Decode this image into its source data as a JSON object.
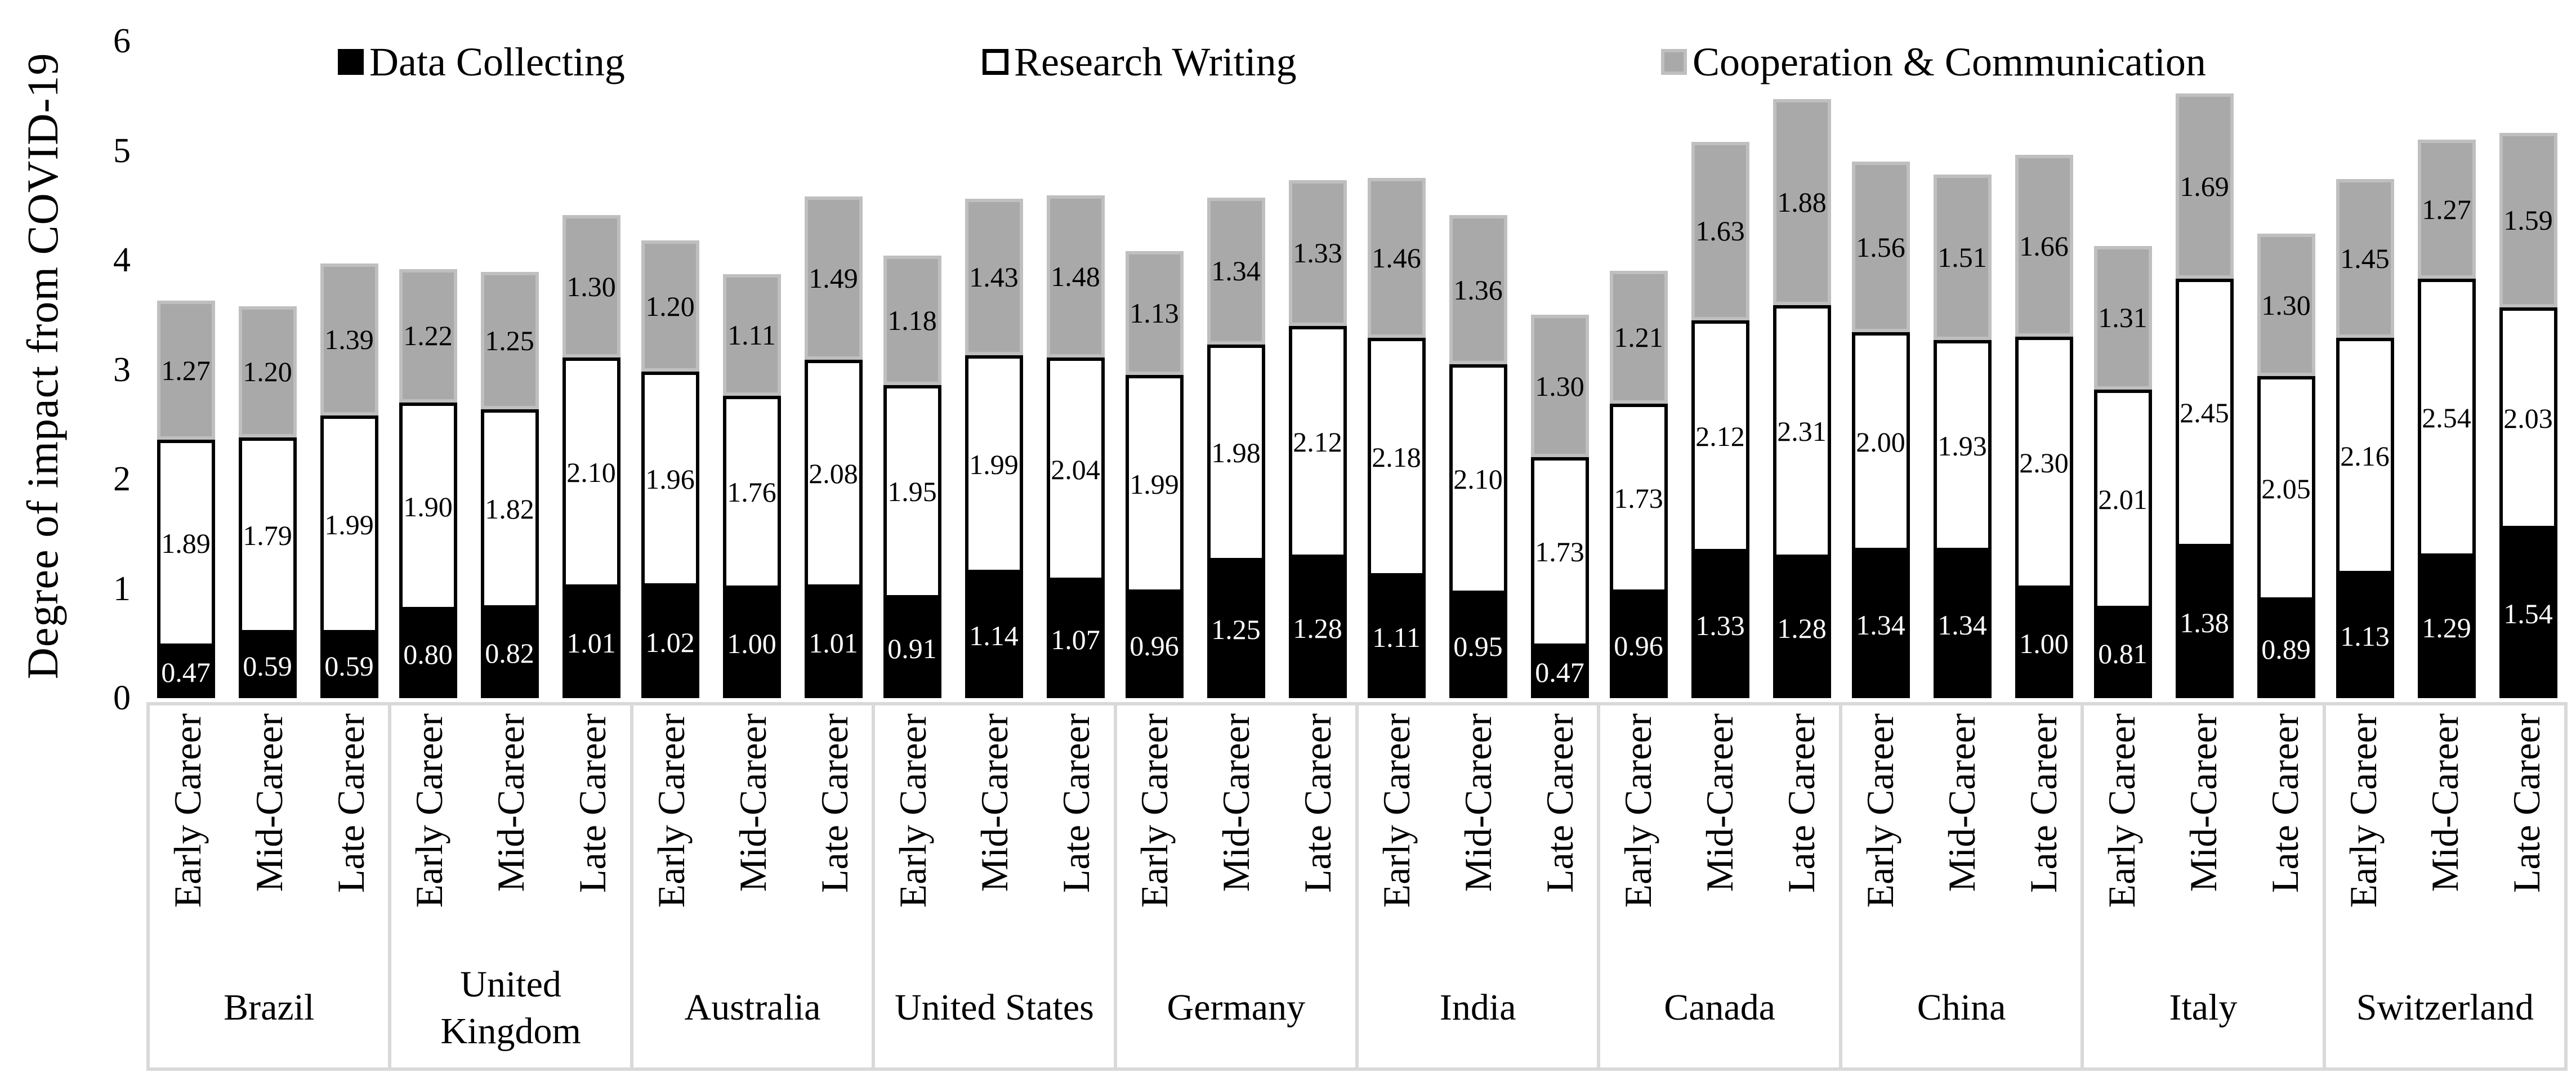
{
  "y_axis": {
    "title": "Degree of impact from COVID-19",
    "ticks": [
      "0",
      "1",
      "2",
      "3",
      "4",
      "5",
      "6"
    ],
    "min": 0,
    "max": 6
  },
  "legend": {
    "items": [
      {
        "name": "data-collecting",
        "label": "Data Collecting"
      },
      {
        "name": "research-writing",
        "label": "Research Writing"
      },
      {
        "name": "cooperation-communication",
        "label": "Cooperation & Communication"
      }
    ]
  },
  "colors": {
    "data_collecting": "#000000",
    "research_writing": "#ffffff",
    "cooperation_communication": "#a9a9a9",
    "gray_segment_border": "#bfbfbf",
    "bar_outline": "#000000",
    "frame_border": "#d9d9d9",
    "label_on_black": "#ffffff",
    "label_on_light": "#000000"
  },
  "chart_data": {
    "type": "bar",
    "stacked": true,
    "ylabel": "Degree of impact from COVID-19",
    "ylim": [
      0,
      6
    ],
    "grid": false,
    "legend_position": "top",
    "value_label_decimals": 2,
    "series_names": [
      "Data Collecting",
      "Research Writing",
      "Cooperation & Communication"
    ],
    "stages": [
      "Early Career",
      "Mid-Career",
      "Late Career"
    ],
    "groups": [
      {
        "country": "Brazil",
        "bars": [
          [
            0.47,
            1.89,
            1.27
          ],
          [
            0.59,
            1.79,
            1.2
          ],
          [
            0.59,
            1.99,
            1.39
          ]
        ]
      },
      {
        "country": "United Kingdom",
        "bars": [
          [
            0.8,
            1.9,
            1.22
          ],
          [
            0.82,
            1.82,
            1.25
          ],
          [
            1.01,
            2.1,
            1.3
          ]
        ]
      },
      {
        "country": "Australia",
        "bars": [
          [
            1.02,
            1.96,
            1.2
          ],
          [
            1.0,
            1.76,
            1.11
          ],
          [
            1.01,
            2.08,
            1.49
          ]
        ]
      },
      {
        "country": "United States",
        "bars": [
          [
            0.91,
            1.95,
            1.18
          ],
          [
            1.14,
            1.99,
            1.43
          ],
          [
            1.07,
            2.04,
            1.48
          ]
        ]
      },
      {
        "country": "Germany",
        "bars": [
          [
            0.96,
            1.99,
            1.13
          ],
          [
            1.25,
            1.98,
            1.34
          ],
          [
            1.28,
            2.12,
            1.33
          ]
        ]
      },
      {
        "country": "India",
        "bars": [
          [
            1.11,
            2.18,
            1.46
          ],
          [
            0.95,
            2.1,
            1.36
          ],
          [
            0.47,
            1.73,
            1.3
          ]
        ]
      },
      {
        "country": "Canada",
        "bars": [
          [
            0.96,
            1.73,
            1.21
          ],
          [
            1.33,
            2.12,
            1.63
          ],
          [
            1.28,
            2.31,
            1.88
          ]
        ]
      },
      {
        "country": "China",
        "bars": [
          [
            1.34,
            2.0,
            1.56
          ],
          [
            1.34,
            1.93,
            1.51
          ],
          [
            1.0,
            2.3,
            1.66
          ]
        ]
      },
      {
        "country": "Italy",
        "bars": [
          [
            0.81,
            2.01,
            1.31
          ],
          [
            1.38,
            2.45,
            1.69
          ],
          [
            0.89,
            2.05,
            1.3
          ]
        ]
      },
      {
        "country": "Switzerland",
        "bars": [
          [
            1.13,
            2.16,
            1.45
          ],
          [
            1.29,
            2.54,
            1.27
          ],
          [
            1.54,
            2.03,
            1.59
          ]
        ]
      }
    ]
  }
}
